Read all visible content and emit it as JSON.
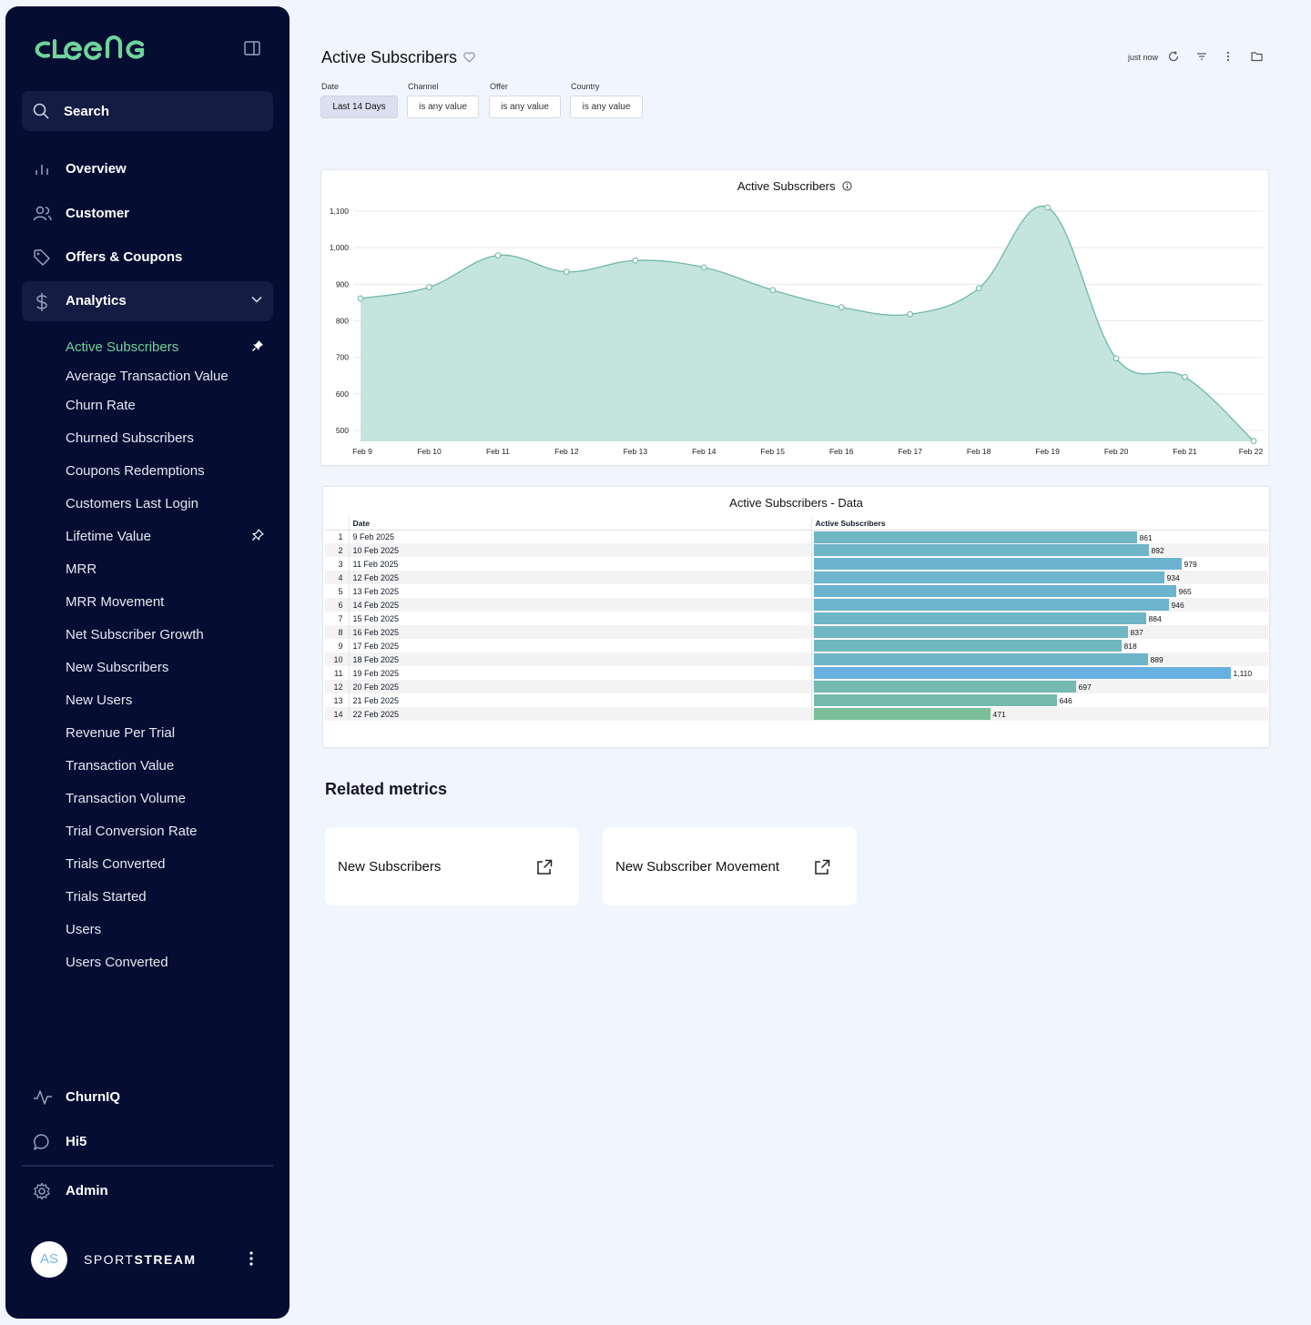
{
  "sidebar": {
    "logo": "CLEENG",
    "search_label": "Search",
    "nav": [
      {
        "label": "Overview",
        "icon": "bar-chart-icon"
      },
      {
        "label": "Customer",
        "icon": "users-icon"
      },
      {
        "label": "Offers & Coupons",
        "icon": "tag-icon"
      },
      {
        "label": "Analytics",
        "icon": "dollar-icon"
      }
    ],
    "analytics_items": [
      "Active Subscribers",
      "Average Transaction Value",
      "Churn Rate",
      "Churned Subscribers",
      "Coupons Redemptions",
      "Customers Last Login",
      "Lifetime Value",
      "MRR",
      "MRR Movement",
      "Net Subscriber Growth",
      "New Subscribers",
      "New Users",
      "Revenue Per Trial",
      "Transaction Value",
      "Transaction Volume",
      "Trial Conversion Rate",
      "Trials Converted",
      "Trials Started",
      "Users",
      "Users Converted"
    ],
    "bottom_nav": [
      {
        "label": "ChurnIQ",
        "icon": "activity-icon"
      },
      {
        "label": "Hi5",
        "icon": "chat-bubble-icon"
      },
      {
        "label": "Admin",
        "icon": "gear-icon"
      }
    ],
    "profile": {
      "initials": "AS",
      "brand_light": "SPORT",
      "brand_bold": "STREAM"
    }
  },
  "header": {
    "title": "Active Subscribers",
    "updated": "just now"
  },
  "filters": [
    {
      "label": "Date",
      "value": "Last 14 Days"
    },
    {
      "label": "Channel",
      "value": "is any value"
    },
    {
      "label": "Offer",
      "value": "is any value"
    },
    {
      "label": "Country",
      "value": "is any value"
    }
  ],
  "colors": {
    "accent": "#6fd39a",
    "area_fill": "#c5e4de",
    "area_line": "#6fb8a8",
    "sidebar_bg": "#050d33"
  },
  "chart_data": {
    "type": "area",
    "title": "Active Subscribers",
    "x": [
      "Feb 9",
      "Feb 10",
      "Feb 11",
      "Feb 12",
      "Feb 13",
      "Feb 14",
      "Feb 15",
      "Feb 16",
      "Feb 17",
      "Feb 18",
      "Feb 19",
      "Feb 20",
      "Feb 21",
      "Feb 22"
    ],
    "values": [
      861,
      892,
      979,
      934,
      965,
      946,
      884,
      837,
      818,
      889,
      1110,
      697,
      646,
      471
    ],
    "y_ticks": [
      "500",
      "600",
      "700",
      "800",
      "900",
      "1,000",
      "1,100"
    ],
    "ylim": [
      470,
      1110
    ],
    "grid": true
  },
  "table": {
    "title": "Active Subscribers - Data",
    "headers": [
      "Date",
      "Active Subscribers"
    ],
    "rows": [
      {
        "n": "1",
        "date": "9 Feb 2025",
        "value": 861,
        "label": "861"
      },
      {
        "n": "2",
        "date": "10 Feb 2025",
        "value": 892,
        "label": "892"
      },
      {
        "n": "3",
        "date": "11 Feb 2025",
        "value": 979,
        "label": "979"
      },
      {
        "n": "4",
        "date": "12 Feb 2025",
        "value": 934,
        "label": "934"
      },
      {
        "n": "5",
        "date": "13 Feb 2025",
        "value": 965,
        "label": "965"
      },
      {
        "n": "6",
        "date": "14 Feb 2025",
        "value": 946,
        "label": "946"
      },
      {
        "n": "7",
        "date": "15 Feb 2025",
        "value": 884,
        "label": "884"
      },
      {
        "n": "8",
        "date": "16 Feb 2025",
        "value": 837,
        "label": "837"
      },
      {
        "n": "9",
        "date": "17 Feb 2025",
        "value": 818,
        "label": "818"
      },
      {
        "n": "10",
        "date": "18 Feb 2025",
        "value": 889,
        "label": "889"
      },
      {
        "n": "11",
        "date": "19 Feb 2025",
        "value": 1110,
        "label": "1,110"
      },
      {
        "n": "12",
        "date": "20 Feb 2025",
        "value": 697,
        "label": "697"
      },
      {
        "n": "13",
        "date": "21 Feb 2025",
        "value": 646,
        "label": "646"
      },
      {
        "n": "14",
        "date": "22 Feb 2025",
        "value": 471,
        "label": "471"
      }
    ]
  },
  "related": {
    "title": "Related metrics",
    "cards": [
      "New Subscribers",
      "New Subscriber Movement"
    ]
  }
}
